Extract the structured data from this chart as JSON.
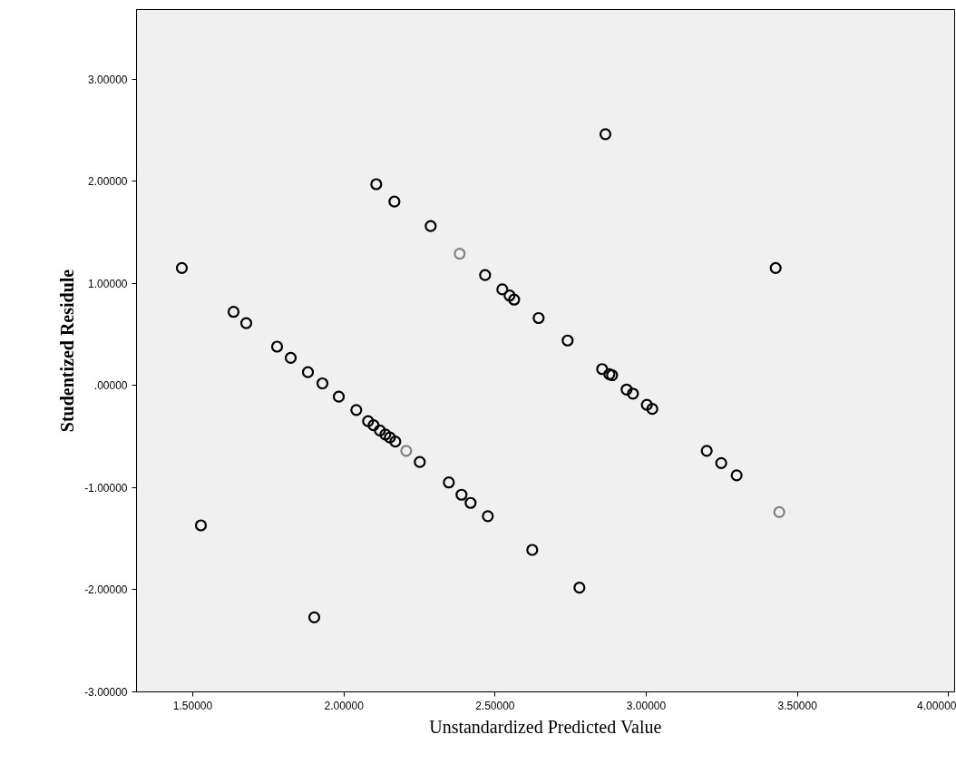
{
  "chart_data": {
    "type": "scatter",
    "xlabel": "Unstandardized Predicted Value",
    "ylabel": "Studentized Residule",
    "xlim": [
      1.314,
      4.02
    ],
    "ylim": [
      -3.0,
      3.68
    ],
    "xticks": [
      {
        "value": 1.5,
        "label": "1.50000"
      },
      {
        "value": 2.0,
        "label": "2.00000"
      },
      {
        "value": 2.5,
        "label": "2.50000"
      },
      {
        "value": 3.0,
        "label": "3.00000"
      },
      {
        "value": 3.5,
        "label": "3.50000"
      },
      {
        "value": 4.0,
        "label": "4.00000"
      }
    ],
    "yticks": [
      {
        "value": -3,
        "label": "-3.00000"
      },
      {
        "value": -2,
        "label": "-2.00000"
      },
      {
        "value": -1,
        "label": "-1.00000"
      },
      {
        "value": 0,
        "label": ".00000"
      },
      {
        "value": 1,
        "label": "1.00000"
      },
      {
        "value": 2,
        "label": "2.00000"
      },
      {
        "value": 3,
        "label": "3.00000"
      }
    ],
    "grid": false,
    "marker": "circle",
    "series": [
      {
        "color": "#000000",
        "x": [
          2.865,
          2.107,
          2.167,
          2.287,
          2.467,
          2.524,
          2.548,
          2.563,
          2.644,
          2.74,
          2.854,
          2.878,
          2.887,
          2.935,
          2.956,
          3.002,
          3.02,
          3.2,
          3.248,
          3.299,
          3.428,
          1.464,
          1.527,
          1.635,
          1.677,
          1.779,
          1.824,
          1.881,
          1.929,
          1.983,
          2.041,
          2.08,
          2.098,
          2.119,
          2.137,
          2.152,
          2.17,
          2.251,
          2.347,
          2.389,
          2.419,
          2.476,
          2.623,
          2.779,
          1.902
        ],
        "values": [
          2.46,
          1.97,
          1.8,
          1.56,
          1.08,
          0.94,
          0.88,
          0.84,
          0.66,
          0.44,
          0.16,
          0.11,
          0.1,
          -0.04,
          -0.08,
          -0.19,
          -0.23,
          -0.64,
          -0.76,
          -0.88,
          1.15,
          1.15,
          -1.37,
          0.72,
          0.61,
          0.38,
          0.27,
          0.13,
          0.02,
          -0.11,
          -0.24,
          -0.35,
          -0.39,
          -0.44,
          -0.48,
          -0.51,
          -0.55,
          -0.75,
          -0.95,
          -1.07,
          -1.15,
          -1.28,
          -1.61,
          -1.98,
          -2.27
        ]
      },
      {
        "color": "#808080",
        "x": [
          2.383,
          3.44,
          2.206
        ],
        "values": [
          1.29,
          -1.24,
          -0.64
        ]
      }
    ]
  }
}
